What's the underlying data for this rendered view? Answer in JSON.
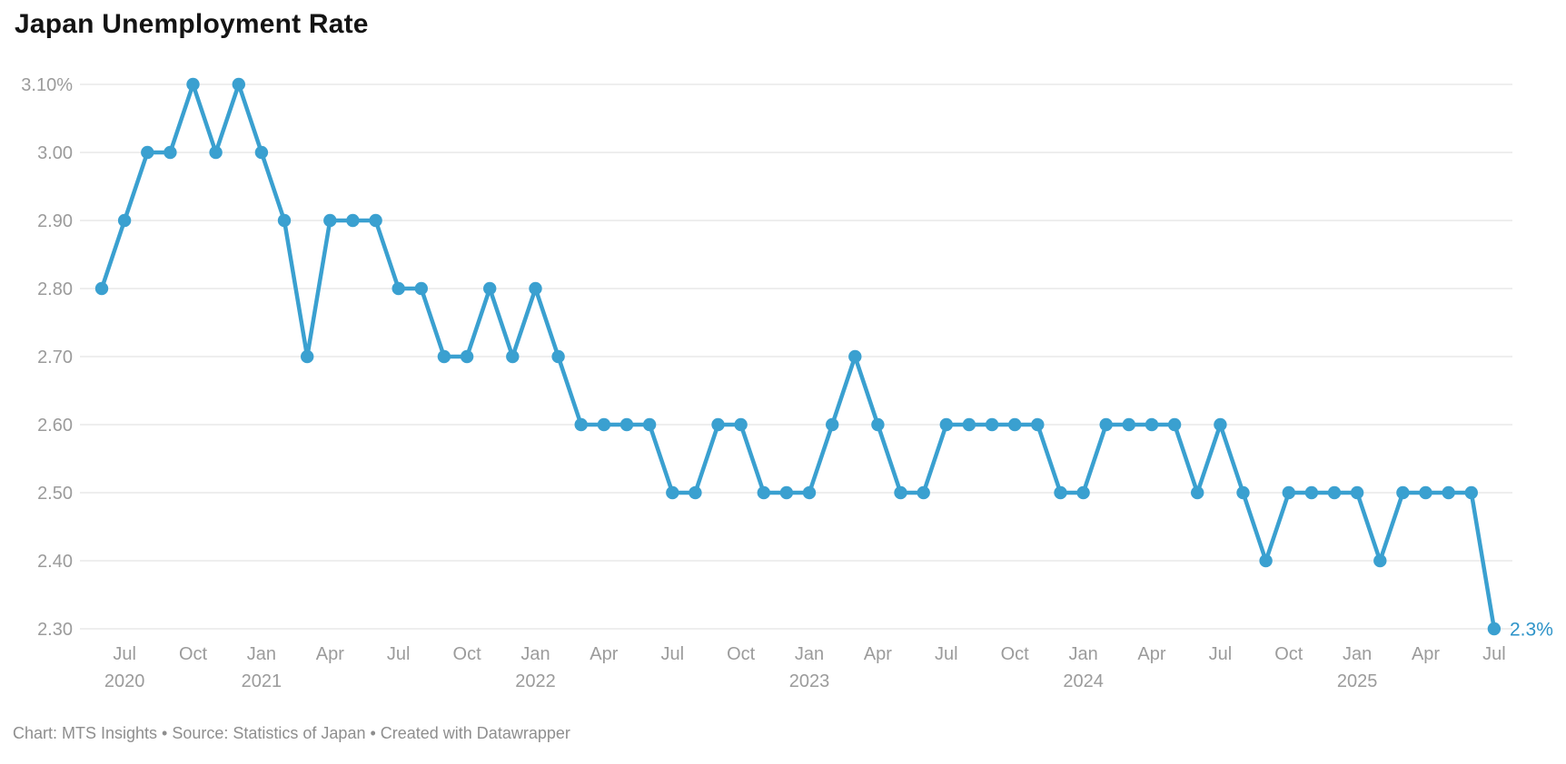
{
  "title": "Japan Unemployment Rate",
  "footer": "Chart: MTS Insights • Source: Statistics of Japan • Created with Datawrapper",
  "last_value_label": "2.3%",
  "colors": {
    "line": "#3AA0D0",
    "point": "#3AA0D0",
    "value_label": "#2D93C8",
    "grid": "#E8E8E8",
    "axis_text": "#9B9B9B",
    "footer_text": "#8E8E8E",
    "title_text": "#141414",
    "background": "#FFFFFF"
  },
  "chart_data": {
    "type": "line",
    "title": "Japan Unemployment Rate",
    "unit": "%",
    "ylabel": "",
    "xlabel": "",
    "ylim": [
      2.3,
      3.1
    ],
    "grid": "horizontal",
    "legend": "none",
    "x": [
      "Jun 2020",
      "Jul 2020",
      "Aug 2020",
      "Sep 2020",
      "Oct 2020",
      "Nov 2020",
      "Dec 2020",
      "Jan 2021",
      "Feb 2021",
      "Mar 2021",
      "Apr 2021",
      "May 2021",
      "Jun 2021",
      "Jul 2021",
      "Aug 2021",
      "Sep 2021",
      "Oct 2021",
      "Nov 2021",
      "Dec 2021",
      "Jan 2022",
      "Feb 2022",
      "Mar 2022",
      "Apr 2022",
      "May 2022",
      "Jun 2022",
      "Jul 2022",
      "Aug 2022",
      "Sep 2022",
      "Oct 2022",
      "Nov 2022",
      "Dec 2022",
      "Jan 2023",
      "Feb 2023",
      "Mar 2023",
      "Apr 2023",
      "May 2023",
      "Jun 2023",
      "Jul 2023",
      "Aug 2023",
      "Sep 2023",
      "Oct 2023",
      "Nov 2023",
      "Dec 2023",
      "Jan 2024",
      "Feb 2024",
      "Mar 2024",
      "Apr 2024",
      "May 2024",
      "Jun 2024",
      "Jul 2024",
      "Aug 2024",
      "Sep 2024",
      "Oct 2024",
      "Nov 2024",
      "Dec 2024",
      "Jan 2025",
      "Feb 2025",
      "Mar 2025",
      "Apr 2025",
      "May 2025",
      "Jun 2025",
      "Jul 2025"
    ],
    "values": [
      2.8,
      2.9,
      3.0,
      3.0,
      3.1,
      3.0,
      3.1,
      3.0,
      2.9,
      2.7,
      2.9,
      2.9,
      2.9,
      2.8,
      2.8,
      2.7,
      2.7,
      2.8,
      2.7,
      2.8,
      2.7,
      2.6,
      2.6,
      2.6,
      2.6,
      2.5,
      2.5,
      2.6,
      2.6,
      2.5,
      2.5,
      2.5,
      2.6,
      2.7,
      2.6,
      2.5,
      2.5,
      2.6,
      2.6,
      2.6,
      2.6,
      2.6,
      2.5,
      2.5,
      2.6,
      2.6,
      2.6,
      2.6,
      2.5,
      2.6,
      2.5,
      2.4,
      2.5,
      2.5,
      2.5,
      2.5,
      2.4,
      2.5,
      2.5,
      2.5,
      2.5,
      2.3
    ],
    "y_ticks": [
      {
        "label": "3.10%",
        "value": 3.1
      },
      {
        "label": "3.00",
        "value": 3.0
      },
      {
        "label": "2.90",
        "value": 2.9
      },
      {
        "label": "2.80",
        "value": 2.8
      },
      {
        "label": "2.70",
        "value": 2.7
      },
      {
        "label": "2.60",
        "value": 2.6
      },
      {
        "label": "2.50",
        "value": 2.5
      },
      {
        "label": "2.40",
        "value": 2.4
      },
      {
        "label": "2.30",
        "value": 2.3
      }
    ],
    "x_ticks": [
      {
        "index": 1,
        "month": "Jul",
        "year": "2020"
      },
      {
        "index": 4,
        "month": "Oct",
        "year": ""
      },
      {
        "index": 7,
        "month": "Jan",
        "year": "2021"
      },
      {
        "index": 10,
        "month": "Apr",
        "year": ""
      },
      {
        "index": 13,
        "month": "Jul",
        "year": ""
      },
      {
        "index": 16,
        "month": "Oct",
        "year": ""
      },
      {
        "index": 19,
        "month": "Jan",
        "year": "2022"
      },
      {
        "index": 22,
        "month": "Apr",
        "year": ""
      },
      {
        "index": 25,
        "month": "Jul",
        "year": ""
      },
      {
        "index": 28,
        "month": "Oct",
        "year": ""
      },
      {
        "index": 31,
        "month": "Jan",
        "year": "2023"
      },
      {
        "index": 34,
        "month": "Apr",
        "year": ""
      },
      {
        "index": 37,
        "month": "Jul",
        "year": ""
      },
      {
        "index": 40,
        "month": "Oct",
        "year": ""
      },
      {
        "index": 43,
        "month": "Jan",
        "year": "2024"
      },
      {
        "index": 46,
        "month": "Apr",
        "year": ""
      },
      {
        "index": 49,
        "month": "Jul",
        "year": ""
      },
      {
        "index": 52,
        "month": "Oct",
        "year": ""
      },
      {
        "index": 55,
        "month": "Jan",
        "year": "2025"
      },
      {
        "index": 58,
        "month": "Apr",
        "year": ""
      },
      {
        "index": 61,
        "month": "Jul",
        "year": ""
      }
    ]
  }
}
